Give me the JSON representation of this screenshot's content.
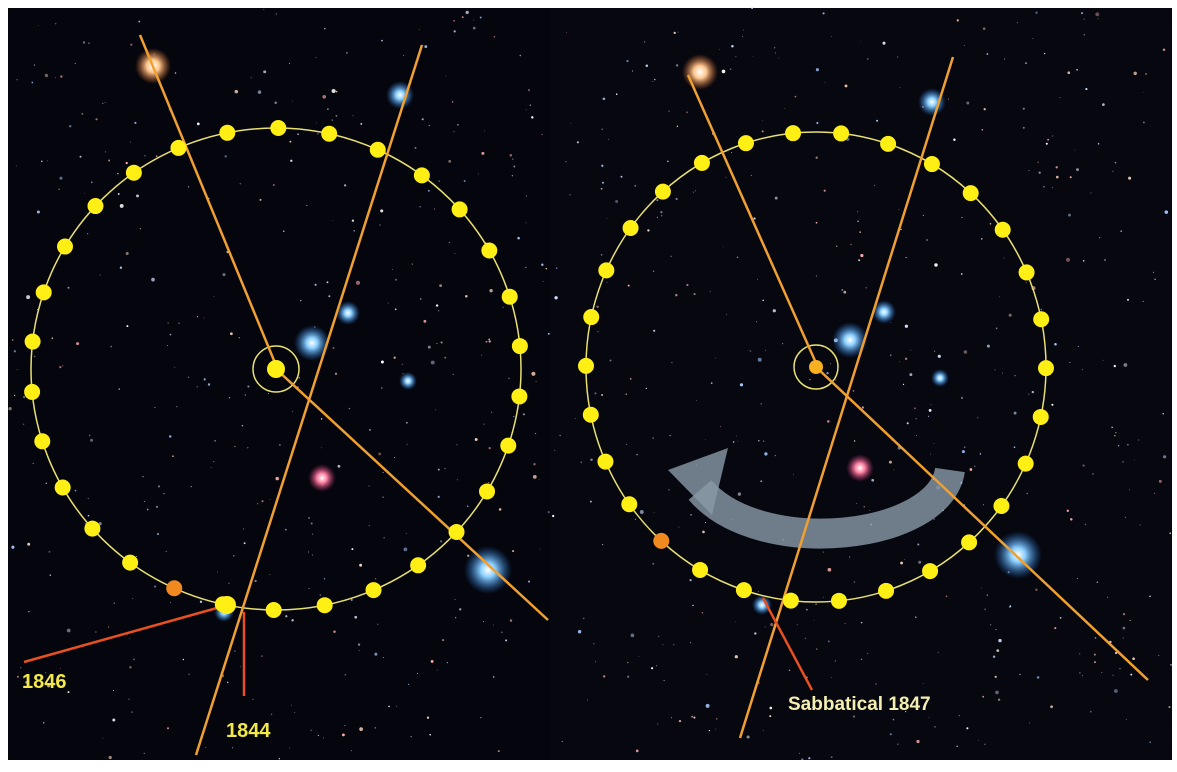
{
  "left_panel": {
    "labels": [
      "1846",
      "1844"
    ]
  },
  "right_panel": {
    "labels": [
      "Sabbatical 1847"
    ]
  }
}
